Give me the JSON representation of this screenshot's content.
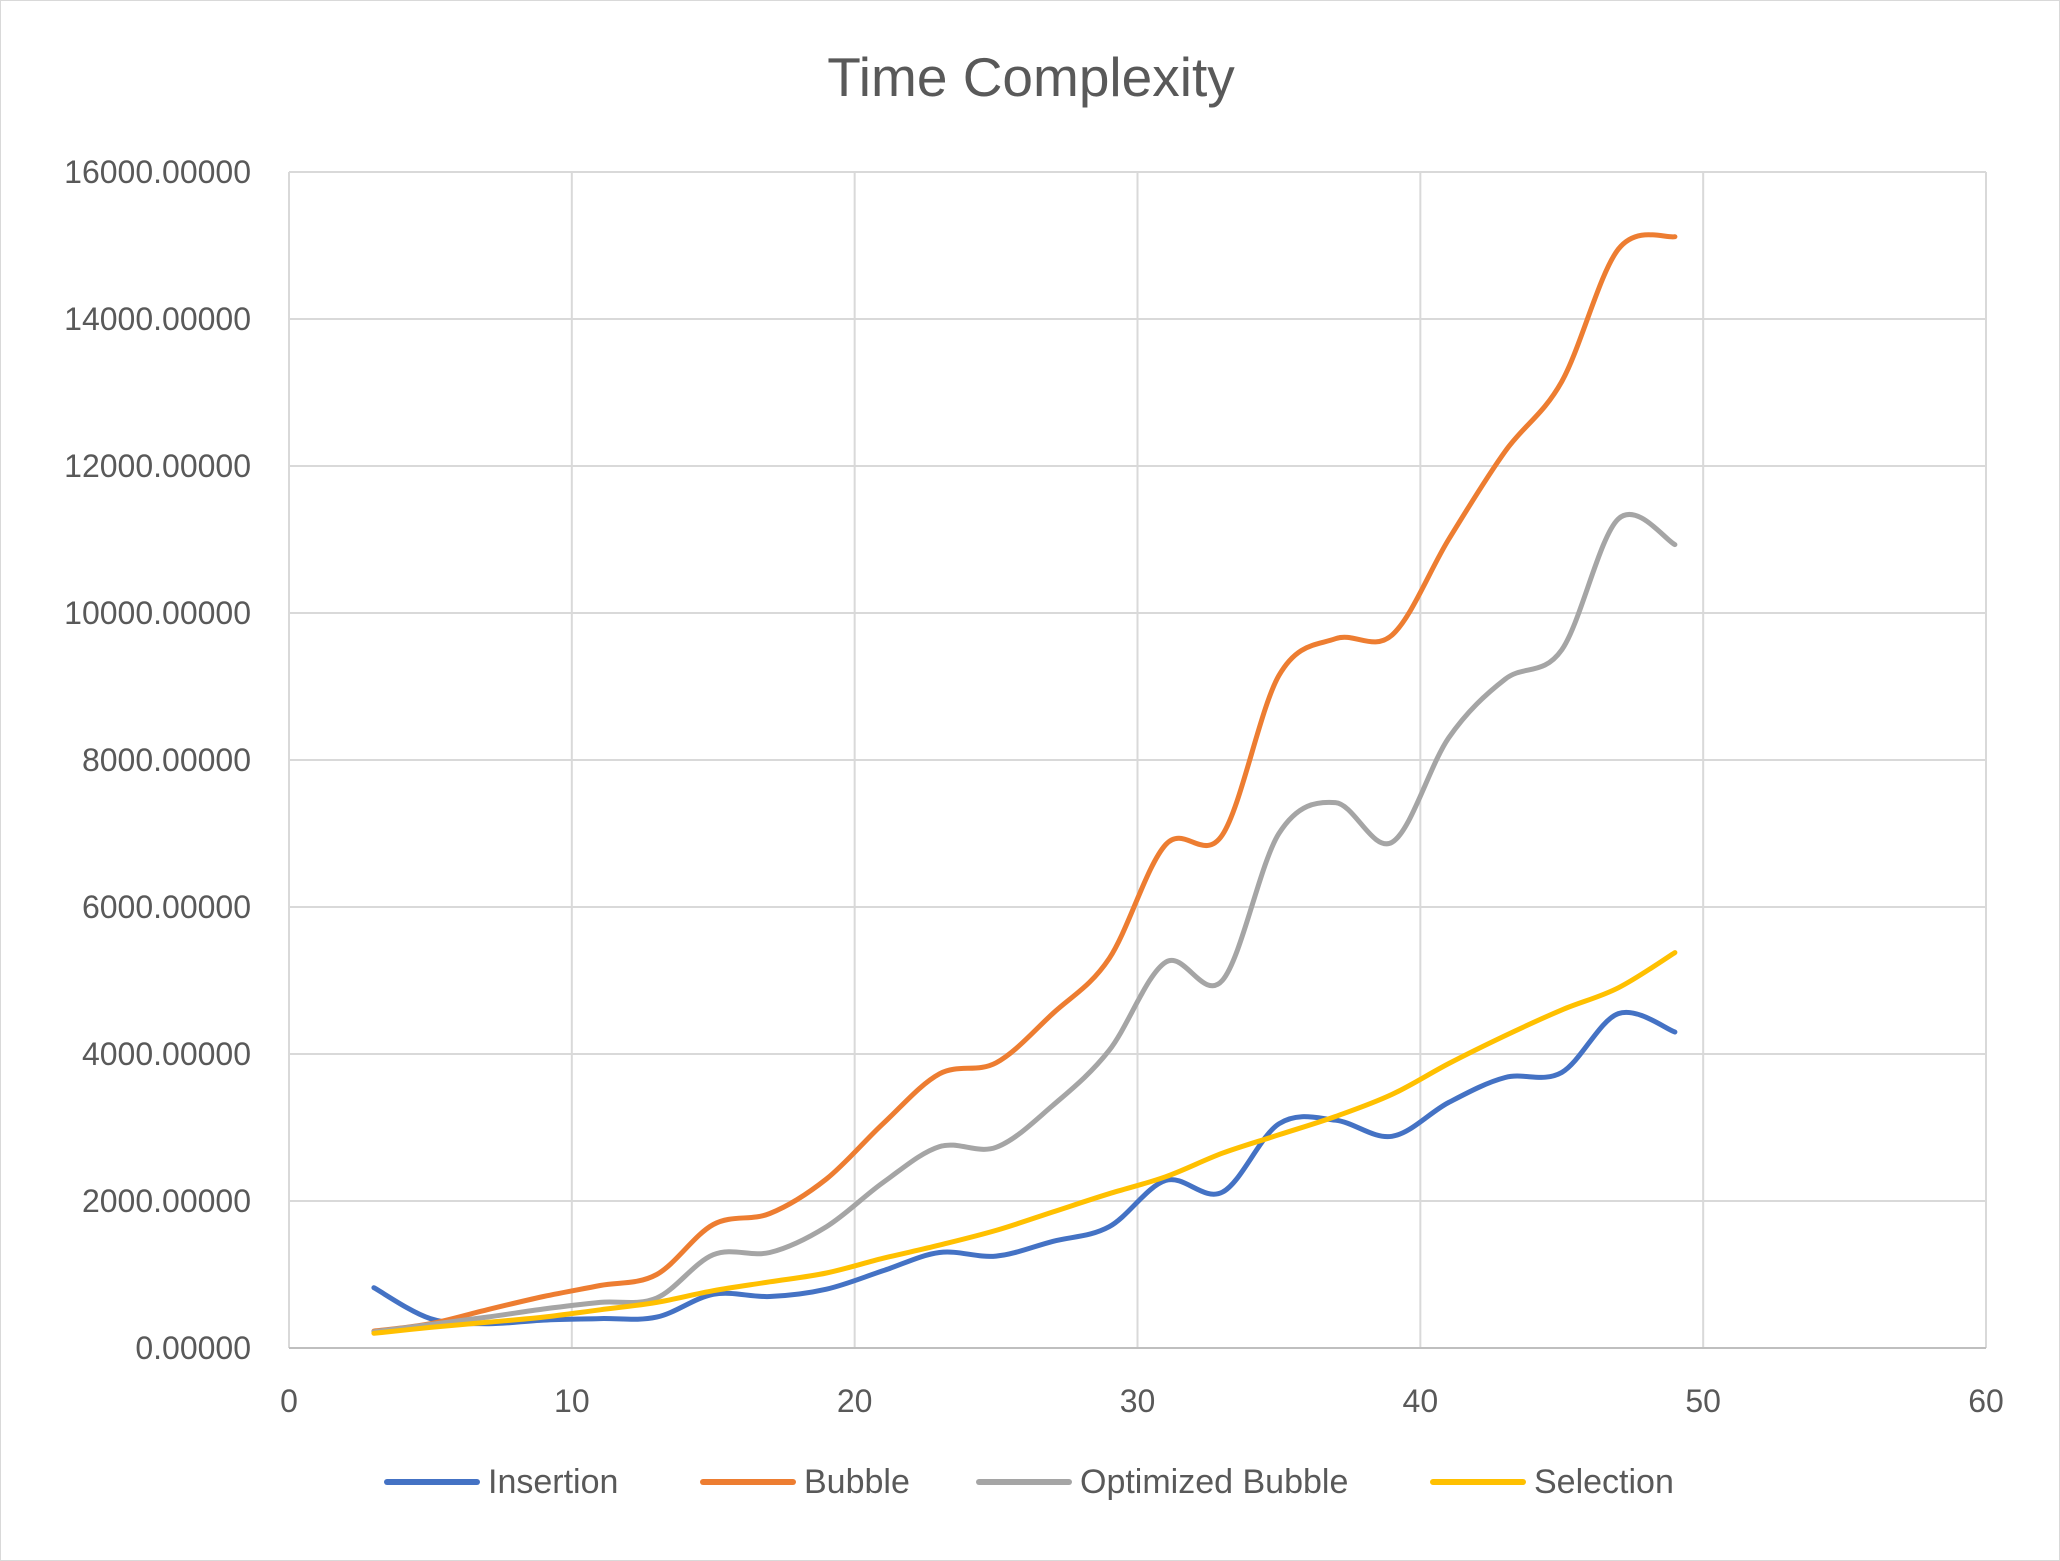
{
  "chart_data": {
    "type": "line",
    "title": "Time Complexity",
    "xlabel": "",
    "ylabel": "",
    "xlim": [
      0,
      60
    ],
    "ylim": [
      0,
      16000
    ],
    "x_ticks": [
      0,
      10,
      20,
      30,
      40,
      50,
      60
    ],
    "x_tick_labels": [
      "0",
      "10",
      "20",
      "30",
      "40",
      "50",
      "60"
    ],
    "y_ticks": [
      0,
      2000,
      4000,
      6000,
      8000,
      10000,
      12000,
      14000,
      16000
    ],
    "y_tick_labels": [
      "0.00000",
      "2000.00000",
      "4000.00000",
      "6000.00000",
      "8000.00000",
      "10000.00000",
      "12000.00000",
      "14000.00000",
      "16000.00000"
    ],
    "grid": true,
    "legend_position": "bottom",
    "smoothed": true,
    "x": [
      3,
      5,
      7,
      9,
      11,
      13,
      15,
      17,
      19,
      21,
      23,
      25,
      27,
      29,
      31,
      33,
      35,
      37,
      39,
      41,
      43,
      45,
      47,
      49
    ],
    "series": [
      {
        "name": "Insertion",
        "color": "#4472C4",
        "values": [
          820,
          400,
          330,
          380,
          400,
          420,
          730,
          700,
          800,
          1050,
          1300,
          1250,
          1450,
          1650,
          2280,
          2120,
          3050,
          3100,
          2880,
          3340,
          3680,
          3750,
          4550,
          4300
        ]
      },
      {
        "name": "Bubble",
        "color": "#ED7D31",
        "values": [
          230,
          330,
          520,
          700,
          850,
          1000,
          1680,
          1830,
          2300,
          3050,
          3730,
          3880,
          4550,
          5300,
          6850,
          6980,
          9150,
          9650,
          9700,
          11000,
          12200,
          13150,
          14950,
          15120
        ]
      },
      {
        "name": "Optimized Bubble",
        "color": "#A5A5A5",
        "values": [
          220,
          320,
          420,
          530,
          620,
          680,
          1270,
          1300,
          1650,
          2250,
          2740,
          2730,
          3300,
          4050,
          5250,
          5000,
          7000,
          7420,
          6880,
          8300,
          9100,
          9500,
          11280,
          10930
        ]
      },
      {
        "name": "Selection",
        "color": "#FFC000",
        "values": [
          200,
          280,
          350,
          420,
          520,
          620,
          780,
          900,
          1020,
          1220,
          1400,
          1600,
          1850,
          2100,
          2330,
          2650,
          2900,
          3150,
          3450,
          3870,
          4250,
          4600,
          4900,
          5380
        ]
      }
    ]
  }
}
